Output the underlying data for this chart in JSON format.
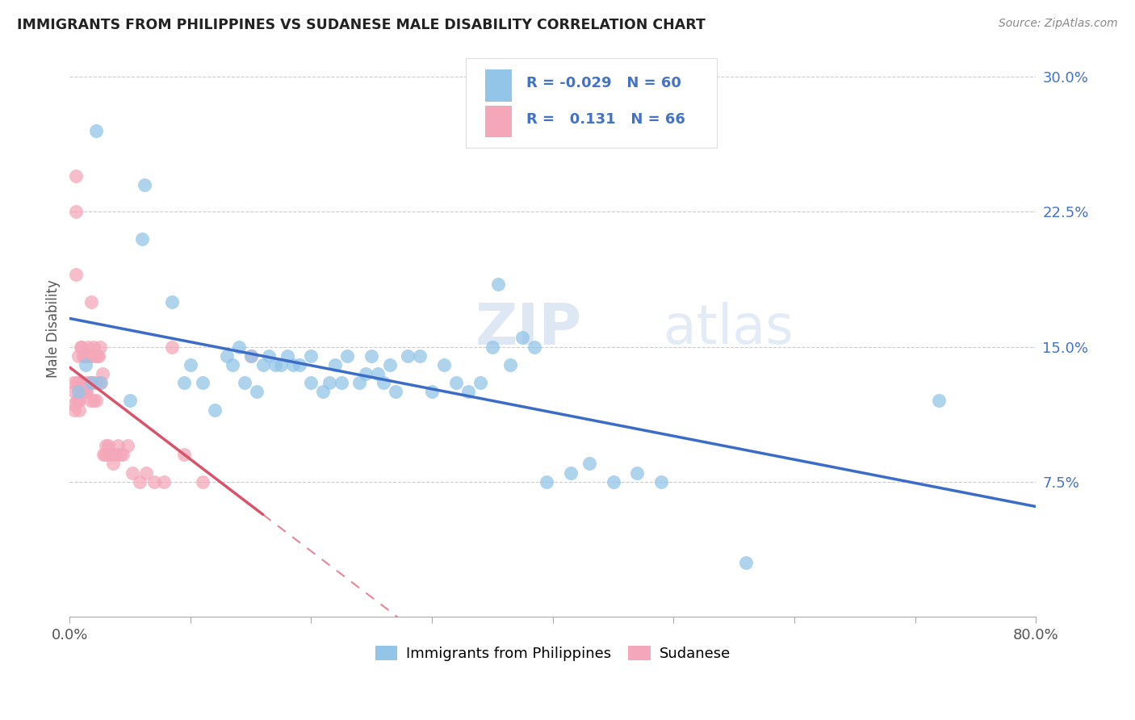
{
  "title": "IMMIGRANTS FROM PHILIPPINES VS SUDANESE MALE DISABILITY CORRELATION CHART",
  "source": "Source: ZipAtlas.com",
  "ylabel": "Male Disability",
  "xlim": [
    0.0,
    0.8
  ],
  "ylim": [
    0.0,
    0.32
  ],
  "xticks": [
    0.0,
    0.1,
    0.2,
    0.3,
    0.4,
    0.5,
    0.6,
    0.7,
    0.8
  ],
  "xticklabels": [
    "0.0%",
    "",
    "",
    "",
    "",
    "",
    "",
    "",
    "80.0%"
  ],
  "ytick_positions": [
    0.075,
    0.15,
    0.225,
    0.3
  ],
  "yticklabels": [
    "7.5%",
    "15.0%",
    "22.5%",
    "30.0%"
  ],
  "blue_color": "#92C5E8",
  "pink_color": "#F4A7B9",
  "blue_line_color": "#3B6CC7",
  "pink_line_solid_color": "#D9536A",
  "pink_line_dash_color": "#E8859A",
  "R_blue": -0.029,
  "N_blue": 60,
  "R_pink": 0.131,
  "N_pink": 66,
  "legend_label_blue": "Immigrants from Philippines",
  "legend_label_pink": "Sudanese",
  "blue_scatter_x": [
    0.022,
    0.062,
    0.007,
    0.013,
    0.018,
    0.025,
    0.05,
    0.06,
    0.085,
    0.095,
    0.1,
    0.11,
    0.12,
    0.13,
    0.135,
    0.14,
    0.145,
    0.15,
    0.155,
    0.16,
    0.165,
    0.17,
    0.175,
    0.18,
    0.185,
    0.19,
    0.2,
    0.2,
    0.21,
    0.215,
    0.22,
    0.225,
    0.23,
    0.24,
    0.245,
    0.25,
    0.255,
    0.26,
    0.265,
    0.27,
    0.28,
    0.29,
    0.3,
    0.31,
    0.32,
    0.33,
    0.34,
    0.35,
    0.355,
    0.365,
    0.375,
    0.385,
    0.395,
    0.415,
    0.43,
    0.45,
    0.47,
    0.49,
    0.72,
    0.56
  ],
  "blue_scatter_y": [
    0.27,
    0.24,
    0.125,
    0.14,
    0.13,
    0.13,
    0.12,
    0.21,
    0.175,
    0.13,
    0.14,
    0.13,
    0.115,
    0.145,
    0.14,
    0.15,
    0.13,
    0.145,
    0.125,
    0.14,
    0.145,
    0.14,
    0.14,
    0.145,
    0.14,
    0.14,
    0.13,
    0.145,
    0.125,
    0.13,
    0.14,
    0.13,
    0.145,
    0.13,
    0.135,
    0.145,
    0.135,
    0.13,
    0.14,
    0.125,
    0.145,
    0.145,
    0.125,
    0.14,
    0.13,
    0.125,
    0.13,
    0.15,
    0.185,
    0.14,
    0.155,
    0.15,
    0.075,
    0.08,
    0.085,
    0.075,
    0.08,
    0.075,
    0.12,
    0.03
  ],
  "pink_scatter_x": [
    0.003,
    0.003,
    0.004,
    0.004,
    0.005,
    0.005,
    0.005,
    0.006,
    0.006,
    0.007,
    0.007,
    0.007,
    0.008,
    0.008,
    0.008,
    0.009,
    0.009,
    0.01,
    0.01,
    0.011,
    0.011,
    0.012,
    0.012,
    0.013,
    0.013,
    0.014,
    0.014,
    0.015,
    0.015,
    0.016,
    0.017,
    0.017,
    0.018,
    0.018,
    0.019,
    0.02,
    0.02,
    0.021,
    0.022,
    0.022,
    0.023,
    0.024,
    0.025,
    0.026,
    0.027,
    0.028,
    0.029,
    0.03,
    0.031,
    0.032,
    0.034,
    0.036,
    0.038,
    0.04,
    0.042,
    0.044,
    0.048,
    0.052,
    0.058,
    0.063,
    0.07,
    0.078,
    0.085,
    0.095,
    0.11,
    0.15
  ],
  "pink_scatter_y": [
    0.13,
    0.118,
    0.125,
    0.115,
    0.245,
    0.225,
    0.19,
    0.13,
    0.12,
    0.145,
    0.13,
    0.12,
    0.13,
    0.12,
    0.115,
    0.15,
    0.13,
    0.15,
    0.125,
    0.145,
    0.125,
    0.145,
    0.13,
    0.145,
    0.125,
    0.145,
    0.125,
    0.15,
    0.13,
    0.145,
    0.13,
    0.12,
    0.145,
    0.175,
    0.13,
    0.15,
    0.12,
    0.145,
    0.13,
    0.12,
    0.145,
    0.145,
    0.15,
    0.13,
    0.135,
    0.09,
    0.09,
    0.095,
    0.09,
    0.095,
    0.09,
    0.085,
    0.09,
    0.095,
    0.09,
    0.09,
    0.095,
    0.08,
    0.075,
    0.08,
    0.075,
    0.075,
    0.15,
    0.09,
    0.075,
    0.145
  ]
}
